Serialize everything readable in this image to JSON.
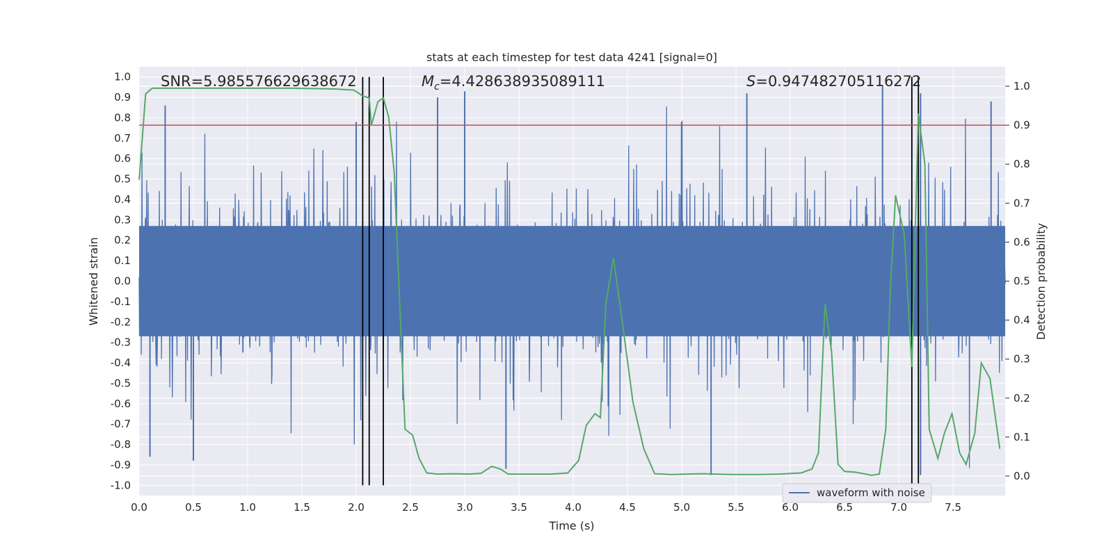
{
  "chart_data": {
    "type": "line",
    "title": "stats at each timestep for test data 4241 [signal=0]",
    "xlabel": "Time (s)",
    "ylabel_left": "Whitened strain",
    "ylabel_right": "Detection probability",
    "xlim": [
      0.0,
      7.98
    ],
    "ylim_left": [
      -1.05,
      1.05
    ],
    "ylim_right": [
      -0.05,
      1.05
    ],
    "x_ticks": [
      "0.0",
      "0.5",
      "1.0",
      "1.5",
      "2.0",
      "2.5",
      "3.0",
      "3.5",
      "4.0",
      "4.5",
      "5.0",
      "5.5",
      "6.0",
      "6.5",
      "7.0",
      "7.5"
    ],
    "x_tick_values": [
      0.0,
      0.5,
      1.0,
      1.5,
      2.0,
      2.5,
      3.0,
      3.5,
      4.0,
      4.5,
      5.0,
      5.5,
      6.0,
      6.5,
      7.0,
      7.5
    ],
    "y_ticks_left": [
      "1.0",
      "0.9",
      "0.8",
      "0.7",
      "0.6",
      "0.5",
      "0.4",
      "0.3",
      "0.2",
      "0.1",
      "0.0",
      "-0.1",
      "-0.2",
      "-0.3",
      "-0.4",
      "-0.5",
      "-0.6",
      "-0.7",
      "-0.8",
      "-0.9",
      "-1.0"
    ],
    "y_tick_values_left": [
      1.0,
      0.9,
      0.8,
      0.7,
      0.6,
      0.5,
      0.4,
      0.3,
      0.2,
      0.1,
      0.0,
      -0.1,
      -0.2,
      -0.3,
      -0.4,
      -0.5,
      -0.6,
      -0.7,
      -0.8,
      -0.9,
      -1.0
    ],
    "y_ticks_right": [
      "1.0",
      "0.9",
      "0.8",
      "0.7",
      "0.6",
      "0.5",
      "0.4",
      "0.3",
      "0.2",
      "0.1",
      "0.0"
    ],
    "y_tick_values_right": [
      1.0,
      0.9,
      0.8,
      0.7,
      0.6,
      0.5,
      0.4,
      0.3,
      0.2,
      0.1,
      0.0
    ],
    "annotations": {
      "snr": "SNR=5.985576629638672",
      "mc_symbol": "M",
      "mc_sub": "c",
      "mc_value": "=4.428638935089111",
      "s_symbol": "S",
      "s_value": "=0.947482705116272"
    },
    "legend": {
      "label": "waveform with noise",
      "position": "lower-right"
    },
    "threshold": {
      "value": 0.9,
      "axis": "right",
      "color": "#c44e52"
    },
    "vlines": [
      2.06,
      2.12,
      2.25,
      7.12,
      7.18
    ],
    "waveform": {
      "name": "waveform with noise",
      "color": "#4c72b0",
      "samples": 8192,
      "duration": 7.98,
      "core_amplitude": 0.27,
      "peak_max": 0.97,
      "trough_min": -0.95,
      "notable_peaks": [
        [
          0.24,
          0.86
        ],
        [
          2.0,
          0.78
        ],
        [
          2.75,
          0.9
        ],
        [
          3.0,
          0.93
        ],
        [
          5.6,
          0.92
        ],
        [
          6.85,
          0.96
        ],
        [
          7.2,
          0.92
        ],
        [
          7.85,
          0.88
        ]
      ],
      "notable_troughs": [
        [
          0.1,
          -0.86
        ],
        [
          0.5,
          -0.88
        ],
        [
          3.38,
          -0.92
        ],
        [
          5.27,
          -0.95
        ],
        [
          7.2,
          -0.95
        ]
      ]
    },
    "detection_probability": {
      "name": "detection probability",
      "color": "#55a868",
      "axis": "right",
      "x": [
        0.0,
        0.06,
        0.12,
        0.3,
        0.6,
        1.0,
        1.4,
        1.8,
        1.98,
        2.06,
        2.12,
        2.14,
        2.2,
        2.25,
        2.3,
        2.35,
        2.4,
        2.45,
        2.52,
        2.58,
        2.65,
        2.75,
        2.9,
        3.05,
        3.15,
        3.25,
        3.33,
        3.4,
        3.6,
        3.8,
        3.95,
        4.05,
        4.12,
        4.2,
        4.25,
        4.3,
        4.37,
        4.45,
        4.55,
        4.65,
        4.75,
        4.9,
        5.05,
        5.2,
        5.45,
        5.7,
        5.9,
        6.1,
        6.2,
        6.26,
        6.32,
        6.38,
        6.44,
        6.5,
        6.6,
        6.75,
        6.82,
        6.88,
        6.92,
        6.97,
        7.05,
        7.12,
        7.18,
        7.24,
        7.28,
        7.36,
        7.42,
        7.49,
        7.56,
        7.62,
        7.7,
        7.76,
        7.84,
        7.93
      ],
      "y": [
        0.76,
        0.98,
        0.995,
        0.995,
        0.995,
        0.995,
        0.995,
        0.993,
        0.99,
        0.975,
        0.97,
        0.9,
        0.96,
        0.97,
        0.92,
        0.78,
        0.45,
        0.12,
        0.105,
        0.045,
        0.008,
        0.005,
        0.006,
        0.005,
        0.007,
        0.025,
        0.018,
        0.005,
        0.005,
        0.005,
        0.008,
        0.04,
        0.13,
        0.16,
        0.15,
        0.44,
        0.56,
        0.4,
        0.19,
        0.07,
        0.006,
        0.004,
        0.005,
        0.006,
        0.004,
        0.004,
        0.005,
        0.008,
        0.018,
        0.06,
        0.44,
        0.32,
        0.03,
        0.012,
        0.01,
        0.002,
        0.005,
        0.12,
        0.47,
        0.72,
        0.62,
        0.28,
        0.93,
        0.8,
        0.12,
        0.045,
        0.11,
        0.16,
        0.06,
        0.03,
        0.11,
        0.29,
        0.25,
        0.07
      ]
    }
  }
}
